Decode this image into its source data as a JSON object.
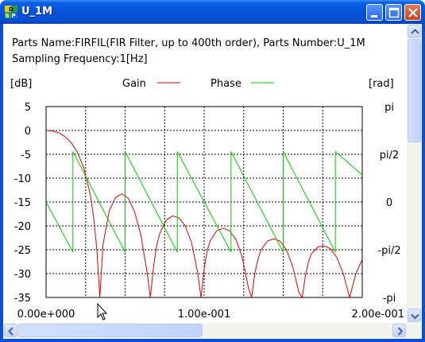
{
  "window": {
    "title": "U_1M",
    "app_icon_letters": [
      "D",
      "S",
      "P"
    ]
  },
  "info": {
    "line1": "Parts Name:FIRFIL(FIR Filter, up to 400th order), Parts Number:U_1M",
    "line2": "Sampling Frequency:1[Hz]"
  },
  "colors": {
    "gain": "#e00000",
    "phase": "#00d000",
    "grid": "#000000",
    "title_bar": "#0653d6"
  },
  "chart_data": {
    "type": "line",
    "left_axis_label": "[dB]",
    "right_axis_label": "[rad]",
    "legend": [
      {
        "name": "Gain",
        "color": "#e00000"
      },
      {
        "name": "Phase",
        "color": "#00d000"
      }
    ],
    "y_left_ticks": [
      "5",
      "0",
      "-5",
      "-10",
      "-15",
      "-20",
      "-25",
      "-30",
      "-35"
    ],
    "y_left_range": [
      -35,
      5
    ],
    "y_right_ticks": [
      "pi",
      "pi/2",
      "0",
      "-pi/2",
      "-pi"
    ],
    "y_right_range": [
      -3.1416,
      3.1416
    ],
    "x_ticks": [
      "0.00e+000",
      "1.00e-001",
      "2.00e-001"
    ],
    "x_range": [
      0,
      0.2
    ],
    "grid": true,
    "series": [
      {
        "name": "Gain",
        "axis": "left",
        "x": [
          0,
          0.004,
          0.008,
          0.012,
          0.016,
          0.02,
          0.024,
          0.028,
          0.03,
          0.032,
          0.034,
          0.036,
          0.04,
          0.044,
          0.048,
          0.052,
          0.056,
          0.06,
          0.064,
          0.066,
          0.068,
          0.07,
          0.072,
          0.076,
          0.08,
          0.084,
          0.088,
          0.092,
          0.096,
          0.098,
          0.1,
          0.102,
          0.104,
          0.108,
          0.112,
          0.116,
          0.12,
          0.124,
          0.128,
          0.13,
          0.132,
          0.134,
          0.136,
          0.14,
          0.144,
          0.148,
          0.152,
          0.156,
          0.16,
          0.162,
          0.164,
          0.166,
          0.168,
          0.172,
          0.176,
          0.18,
          0.184,
          0.188,
          0.192,
          0.196,
          0.2
        ],
        "y": [
          0.0,
          -0.1,
          -0.5,
          -1.3,
          -2.6,
          -4.7,
          -8.0,
          -13.5,
          -18.0,
          -24.5,
          -35.0,
          -24.0,
          -16.8,
          -14.0,
          -13.3,
          -14.2,
          -17.0,
          -22.0,
          -30.0,
          -35.0,
          -28.5,
          -24.0,
          -21.5,
          -18.8,
          -17.9,
          -18.3,
          -20.0,
          -23.5,
          -30.0,
          -35.0,
          -29.0,
          -25.0,
          -23.0,
          -21.0,
          -20.5,
          -21.0,
          -22.8,
          -26.5,
          -33.0,
          -35.0,
          -30.0,
          -27.0,
          -25.0,
          -23.2,
          -22.7,
          -23.2,
          -25.0,
          -28.5,
          -34.0,
          -35.0,
          -30.5,
          -27.5,
          -25.8,
          -24.4,
          -24.2,
          -24.8,
          -26.7,
          -30.0,
          -35.0,
          -30.0,
          -27.0
        ]
      },
      {
        "name": "Phase",
        "axis": "right",
        "x": [
          0,
          0.017,
          0.017,
          0.05,
          0.05,
          0.083,
          0.083,
          0.117,
          0.117,
          0.15,
          0.15,
          0.183,
          0.183,
          0.2
        ],
        "y": [
          0.0,
          -1.65,
          1.66,
          -1.65,
          1.66,
          -1.65,
          1.66,
          -1.65,
          1.66,
          -1.65,
          1.66,
          -1.65,
          1.66,
          0.89
        ]
      }
    ]
  }
}
